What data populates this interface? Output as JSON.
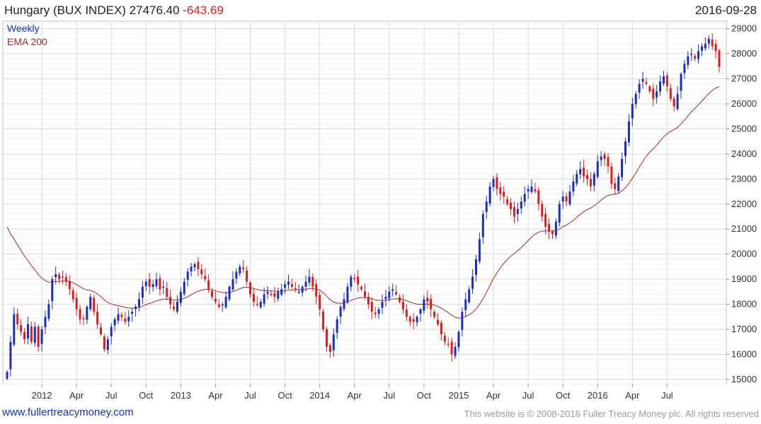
{
  "header": {
    "title": "Hungary (BUX INDEX) 27476.40",
    "change": "-643.69",
    "date": "2016-09-28"
  },
  "footer": {
    "site": "www.fullertreacymoney.com",
    "copyright": "This website is © 2008-2016 Fuller Treacy Money plc. All rights reserved"
  },
  "colors": {
    "up": "#1a2fb5",
    "down": "#d81e1e",
    "ema": "#a52a2a",
    "grid": "#d9d9d9"
  },
  "chart_data": {
    "type": "candlestick",
    "ylim": [
      14800,
      29300
    ],
    "yticks": [
      15000,
      16000,
      17000,
      18000,
      19000,
      20000,
      21000,
      22000,
      23000,
      24000,
      25000,
      26000,
      27000,
      28000,
      29000
    ],
    "xtick_labels": [
      {
        "label": "2012",
        "week": 10
      },
      {
        "label": "Apr",
        "week": 20
      },
      {
        "label": "Jul",
        "week": 30
      },
      {
        "label": "Oct",
        "week": 40
      },
      {
        "label": "2013",
        "week": 50
      },
      {
        "label": "Apr",
        "week": 60
      },
      {
        "label": "Jul",
        "week": 70
      },
      {
        "label": "Oct",
        "week": 80
      },
      {
        "label": "2014",
        "week": 90
      },
      {
        "label": "Apr",
        "week": 100
      },
      {
        "label": "Jul",
        "week": 110
      },
      {
        "label": "Oct",
        "week": 120
      },
      {
        "label": "2015",
        "week": 130
      },
      {
        "label": "Apr",
        "week": 140
      },
      {
        "label": "Jul",
        "week": 150
      },
      {
        "label": "Oct",
        "week": 160
      },
      {
        "label": "2016",
        "week": 170
      },
      {
        "label": "Apr",
        "week": 180
      },
      {
        "label": "Jul",
        "week": 190
      }
    ],
    "series": [
      {
        "name": "Weekly",
        "kind": "weekly-candles",
        "close": [
          15300,
          16500,
          17600,
          17200,
          16900,
          16600,
          17200,
          16500,
          17100,
          16300,
          17000,
          17500,
          18000,
          19000,
          19200,
          19000,
          19100,
          18900,
          18600,
          18200,
          17800,
          17400,
          17400,
          17900,
          18300,
          17700,
          17200,
          16800,
          16200,
          16600,
          17100,
          17400,
          17600,
          17500,
          17300,
          17500,
          17700,
          17900,
          18200,
          18700,
          18900,
          18700,
          18800,
          19000,
          18600,
          18700,
          18300,
          18000,
          17800,
          18100,
          18500,
          18900,
          19300,
          19500,
          19600,
          19400,
          19200,
          19000,
          18600,
          18300,
          18100,
          17900,
          18000,
          18300,
          18700,
          19000,
          19300,
          19500,
          19400,
          18900,
          18400,
          18100,
          18000,
          18100,
          18400,
          18500,
          18400,
          18300,
          18500,
          18600,
          18800,
          18900,
          18700,
          18600,
          18500,
          18700,
          18900,
          19100,
          18700,
          18300,
          17800,
          17000,
          16300,
          16100,
          16800,
          17400,
          17900,
          18200,
          18700,
          19100,
          19000,
          18800,
          18600,
          18300,
          18000,
          17700,
          17600,
          17800,
          18100,
          18300,
          18500,
          18600,
          18400,
          18100,
          17800,
          17500,
          17300,
          17300,
          17500,
          17800,
          18200,
          18100,
          17800,
          17500,
          17200,
          16800,
          16500,
          16400,
          16000,
          16300,
          16900,
          17700,
          18200,
          18600,
          19100,
          19800,
          20600,
          21600,
          22100,
          22700,
          23000,
          22600,
          22400,
          22300,
          22000,
          21800,
          21500,
          21800,
          22100,
          22400,
          22600,
          22700,
          22500,
          22000,
          21500,
          21100,
          20900,
          20800,
          21300,
          22000,
          22300,
          22100,
          22500,
          22900,
          23200,
          23400,
          23100,
          23000,
          22700,
          23200,
          23700,
          23900,
          23800,
          23500,
          22800,
          22600,
          23100,
          23800,
          24500,
          25300,
          26000,
          26400,
          26800,
          27000,
          26800,
          26500,
          26200,
          26500,
          26900,
          27100,
          26700,
          26200,
          25900,
          26400,
          27200,
          27600,
          27900,
          28000,
          27800,
          28100,
          28300,
          28400,
          28600,
          28300,
          28100,
          27476
        ]
      },
      {
        "name": "EMA 200",
        "kind": "ema-line"
      }
    ]
  }
}
